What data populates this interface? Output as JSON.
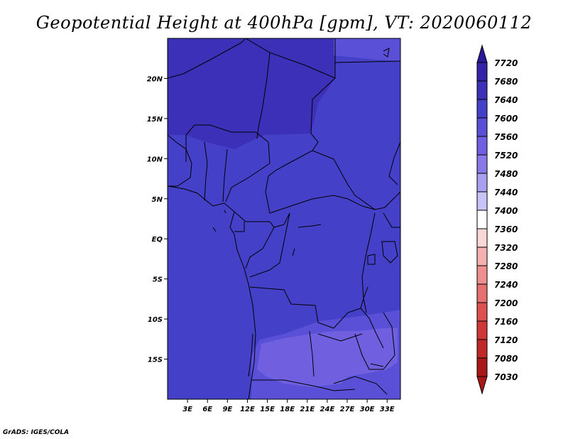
{
  "title": "Geopotential Height at 400hPa [gpm], VT: 2020060112",
  "credit": "GrADS: IGES/COLA",
  "map": {
    "lon_range": [
      0,
      35
    ],
    "lat_range": [
      -20,
      25
    ],
    "lat_ticks": [
      {
        "value": 20,
        "label": "20N"
      },
      {
        "value": 15,
        "label": "15N"
      },
      {
        "value": 10,
        "label": "10N"
      },
      {
        "value": 5,
        "label": "5N"
      },
      {
        "value": 0,
        "label": "EQ"
      },
      {
        "value": -5,
        "label": "5S"
      },
      {
        "value": -10,
        "label": "10S"
      },
      {
        "value": -15,
        "label": "15S"
      }
    ],
    "lon_ticks": [
      {
        "value": 3,
        "label": "3E"
      },
      {
        "value": 6,
        "label": "6E"
      },
      {
        "value": 9,
        "label": "9E"
      },
      {
        "value": 12,
        "label": "12E"
      },
      {
        "value": 15,
        "label": "15E"
      },
      {
        "value": 18,
        "label": "18E"
      },
      {
        "value": 21,
        "label": "21E"
      },
      {
        "value": 24,
        "label": "24E"
      },
      {
        "value": 27,
        "label": "27E"
      },
      {
        "value": 30,
        "label": "30E"
      },
      {
        "value": 33,
        "label": "33E"
      }
    ]
  },
  "colorbar": {
    "levels": [
      {
        "label": "7720",
        "color": "#2a1a9a"
      },
      {
        "label": "7680",
        "color": "#3424a8"
      },
      {
        "label": "7640",
        "color": "#3d30b8"
      },
      {
        "label": "7600",
        "color": "#4540c8"
      },
      {
        "label": "7560",
        "color": "#5a50d8"
      },
      {
        "label": "7520",
        "color": "#7060e0"
      },
      {
        "label": "7480",
        "color": "#8878e8"
      },
      {
        "label": "7440",
        "color": "#a8a0f0"
      },
      {
        "label": "7400",
        "color": "#c8c4f8"
      },
      {
        "label": "7360",
        "color": "#ffffff"
      },
      {
        "label": "7320",
        "color": "#fbd8d8"
      },
      {
        "label": "7280",
        "color": "#f5b0b0"
      },
      {
        "label": "7240",
        "color": "#ee9090"
      },
      {
        "label": "7200",
        "color": "#e57070"
      },
      {
        "label": "7160",
        "color": "#dc5050"
      },
      {
        "label": "7120",
        "color": "#d03838"
      },
      {
        "label": "7080",
        "color": "#c02828"
      },
      {
        "label": "7030",
        "color": "#a81818"
      }
    ],
    "top_color": "#2a1a9a",
    "bottom_color": "#a81818"
  },
  "colors": {
    "field_base": "#4540c8",
    "field_high": "#3d30b8",
    "field_low": "#5a50d8",
    "field_lower": "#7060e0",
    "frame": "#000000"
  }
}
